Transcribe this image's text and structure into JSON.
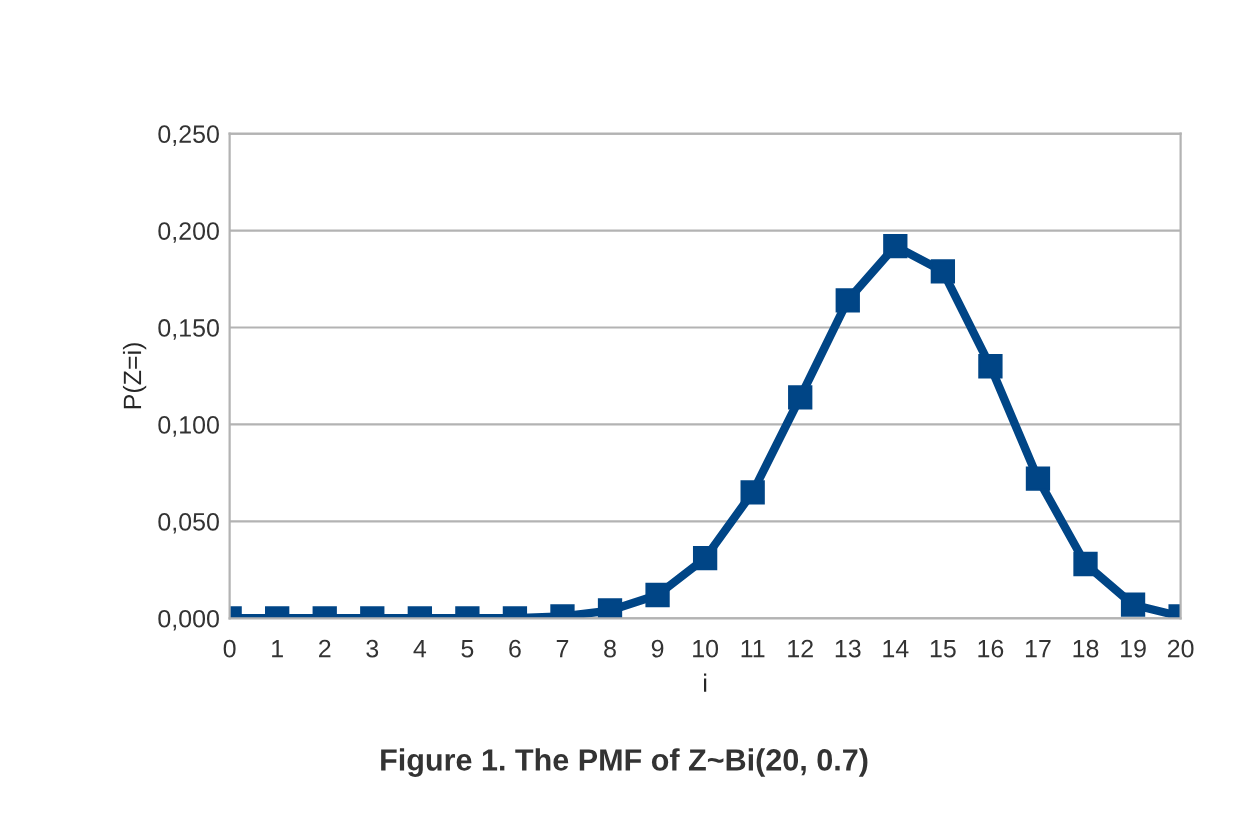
{
  "chart_data": {
    "type": "line",
    "title": "Figure 1. The PMF of Z~Bi(20, 0.7)",
    "xlabel": "i",
    "ylabel": "P(Z=i)",
    "categories": [
      "0",
      "1",
      "2",
      "3",
      "4",
      "5",
      "6",
      "7",
      "8",
      "9",
      "10",
      "11",
      "12",
      "13",
      "14",
      "15",
      "16",
      "17",
      "18",
      "19",
      "20"
    ],
    "series": [
      {
        "color": "#004586",
        "values": [
          0.0,
          0.0,
          0.0,
          0.0,
          0.0,
          0.0,
          0.0,
          0.001,
          0.004,
          0.012,
          0.031,
          0.065,
          0.114,
          0.164,
          0.192,
          0.179,
          0.13,
          0.072,
          0.028,
          0.007,
          0.001
        ]
      }
    ],
    "ylim": [
      0,
      0.25
    ],
    "yticks": [
      {
        "value": 0,
        "label": "0,000"
      },
      {
        "value": 0.05,
        "label": "0,050"
      },
      {
        "value": 0.1,
        "label": "0,100"
      },
      {
        "value": 0.15,
        "label": "0,150"
      },
      {
        "value": 0.2,
        "label": "0,200"
      },
      {
        "value": 0.25,
        "label": "0,250"
      }
    ],
    "grid": "y",
    "marker": "square",
    "line_style": "solid",
    "legend": false
  }
}
